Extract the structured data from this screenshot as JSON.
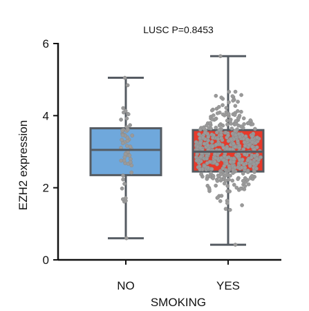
{
  "chart_data": {
    "type": "box",
    "title": "LUSC P=0.8453",
    "xlabel": "SMOKING",
    "ylabel": "EZH2 expression",
    "ylim": [
      0,
      6
    ],
    "yticks": [
      {
        "label": "0",
        "value": 0
      },
      {
        "label": "2",
        "value": 2
      },
      {
        "label": "4",
        "value": 4
      },
      {
        "label": "6",
        "value": 6
      }
    ],
    "grid": false,
    "legend": "none",
    "point_color": "#9a9a9a",
    "categories": [
      "NO",
      "YES"
    ],
    "boxes": [
      {
        "category": "NO",
        "min": 0.6,
        "q1": 2.35,
        "median": 3.05,
        "q3": 3.65,
        "max": 5.05,
        "n_points": 55,
        "color": "#6fa8dc"
      },
      {
        "category": "YES",
        "min": 0.42,
        "q1": 2.45,
        "median": 3.0,
        "q3": 3.6,
        "max": 5.65,
        "n_points": 480,
        "color": "#e8392a"
      }
    ]
  }
}
